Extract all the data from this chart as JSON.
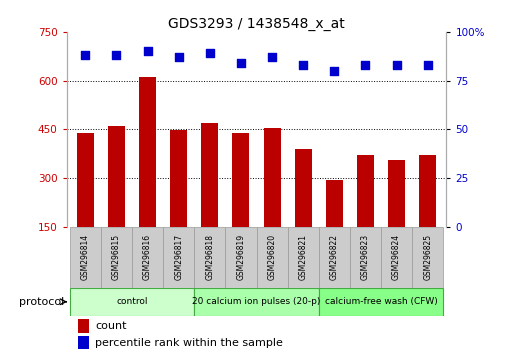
{
  "title": "GDS3293 / 1438548_x_at",
  "samples": [
    "GSM296814",
    "GSM296815",
    "GSM296816",
    "GSM296817",
    "GSM296818",
    "GSM296819",
    "GSM296820",
    "GSM296821",
    "GSM296822",
    "GSM296823",
    "GSM296824",
    "GSM296825"
  ],
  "counts": [
    440,
    460,
    610,
    448,
    468,
    440,
    455,
    390,
    295,
    370,
    355,
    370
  ],
  "percentile_ranks": [
    88,
    88,
    90,
    87,
    89,
    84,
    87,
    83,
    80,
    83,
    83,
    83
  ],
  "bar_color": "#bb0000",
  "dot_color": "#0000cc",
  "ylim_left": [
    150,
    750
  ],
  "ylim_right": [
    0,
    100
  ],
  "yticks_left": [
    150,
    300,
    450,
    600,
    750
  ],
  "yticks_right": [
    0,
    25,
    50,
    75,
    100
  ],
  "grid_values": [
    300,
    450,
    600
  ],
  "protocol_groups": [
    {
      "label": "control",
      "indices": [
        0,
        1,
        2,
        3
      ],
      "color": "#ccffcc",
      "border": "#44aa44"
    },
    {
      "label": "20 calcium ion pulses (20-p)",
      "indices": [
        4,
        5,
        6,
        7
      ],
      "color": "#aaffaa",
      "border": "#44aa44"
    },
    {
      "label": "calcium-free wash (CFW)",
      "indices": [
        8,
        9,
        10,
        11
      ],
      "color": "#88ff88",
      "border": "#44aa44"
    }
  ],
  "protocol_label": "protocol",
  "legend_count_label": "count",
  "legend_pct_label": "percentile rank within the sample",
  "bar_width": 0.55,
  "dot_size": 40,
  "background_color": "#ffffff",
  "tick_color_left": "#cc0000",
  "tick_color_right": "#0000cc",
  "sample_box_color": "#cccccc",
  "sample_box_edge": "#999999"
}
